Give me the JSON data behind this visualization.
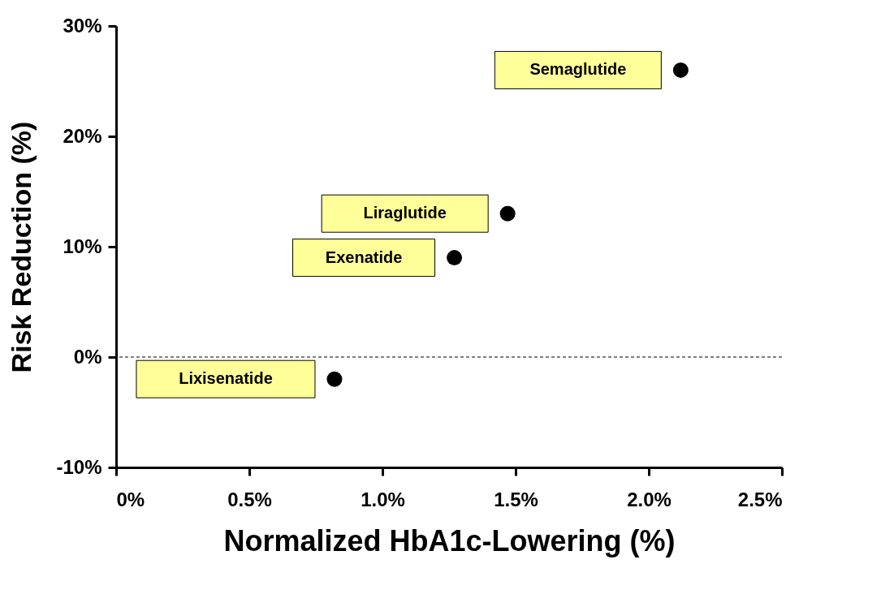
{
  "chart_data": {
    "type": "scatter",
    "xlabel": "Normalized HbA1c-Lowering (%)",
    "ylabel": "Risk Reduction (%)",
    "x": [
      2.12,
      1.47,
      1.27,
      0.82
    ],
    "values": [
      26,
      13,
      9,
      -2
    ],
    "color": "#000000",
    "marker": "circle",
    "grid": false,
    "xlim": [
      0,
      2.5
    ],
    "xticks": [
      {
        "value": 0,
        "label": "0%"
      },
      {
        "value": 0.5,
        "label": "0.5%"
      },
      {
        "value": 1,
        "label": "1.0%"
      },
      {
        "value": 1.5,
        "label": "1.5%"
      },
      {
        "value": 2,
        "label": "2.0%"
      },
      {
        "value": 2.5,
        "label": "2.5%"
      }
    ],
    "ylim": [
      -10,
      30
    ],
    "yticks": [
      {
        "value": -10,
        "label": "-10%"
      },
      {
        "value": 0,
        "label": "0%"
      },
      {
        "value": 10,
        "label": "10%"
      },
      {
        "value": 20,
        "label": "20%"
      },
      {
        "value": 30,
        "label": "30%"
      }
    ],
    "ref_lines": [
      {
        "axis": "y",
        "value": 0,
        "color": "#000000",
        "line_style": "dashed"
      }
    ],
    "annotations": [
      "Semaglutide",
      "Liraglutide",
      "Exenatide",
      "Lixisenatide"
    ]
  }
}
